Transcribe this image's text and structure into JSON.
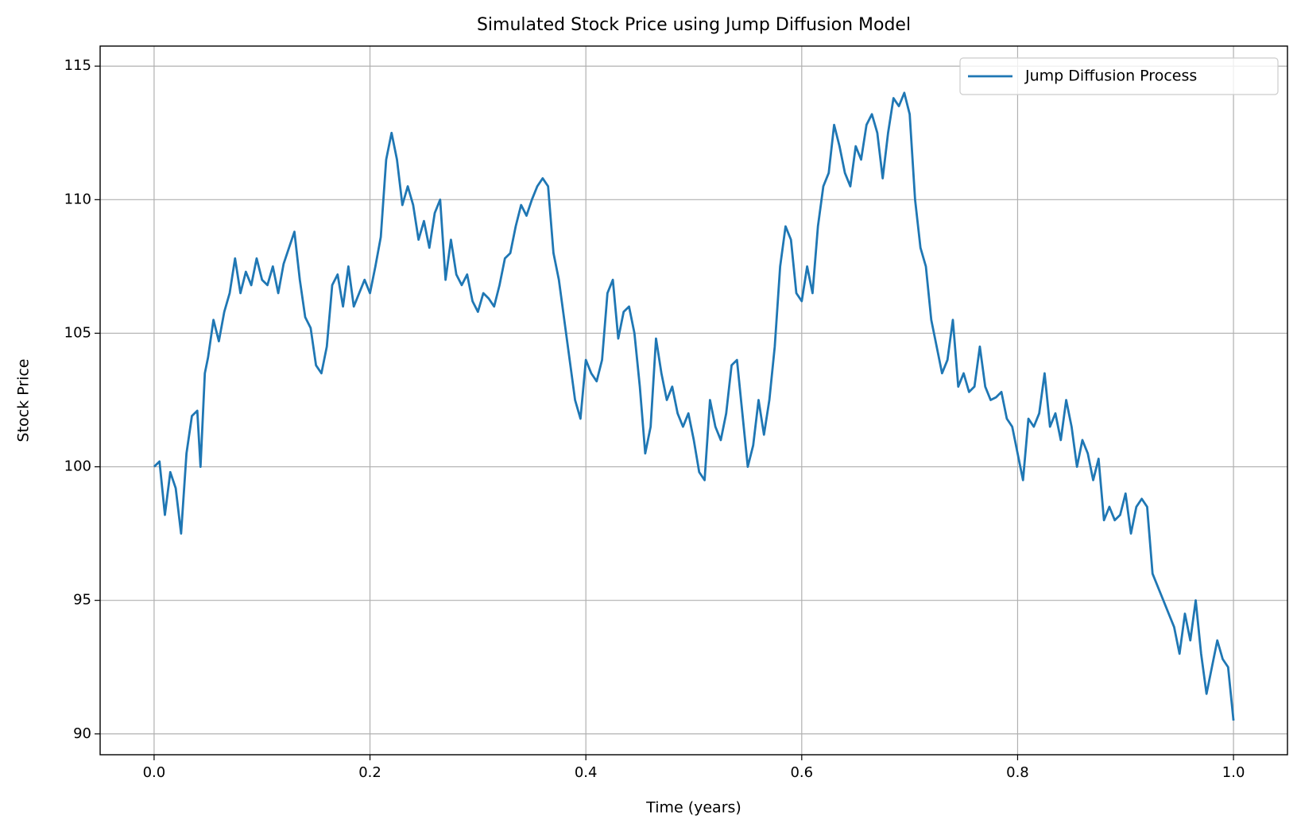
{
  "chart_data": {
    "type": "line",
    "title": "Simulated Stock Price using Jump Diffusion Model",
    "x_label": "Time (years)",
    "y_label": "Stock Price",
    "xlim": [
      -0.05,
      1.05
    ],
    "ylim": [
      89.22,
      115.75
    ],
    "xticks": [
      {
        "value": 0,
        "label": "0.0"
      },
      0.2,
      0.4,
      0.6,
      0.8,
      {
        "value": 1,
        "label": "1.0"
      }
    ],
    "yticks": [
      90,
      95,
      100,
      105,
      110,
      115
    ],
    "grid": true,
    "legend": "upper right",
    "x": [
      0,
      0.005,
      0.01,
      0.015,
      0.02,
      0.025,
      0.03,
      0.035,
      0.04,
      0.043,
      0.047,
      0.05,
      0.055,
      0.06,
      0.065,
      0.07,
      0.075,
      0.08,
      0.085,
      0.09,
      0.095,
      0.1,
      0.105,
      0.11,
      0.115,
      0.12,
      0.125,
      0.13,
      0.135,
      0.14,
      0.145,
      0.15,
      0.155,
      0.16,
      0.165,
      0.17,
      0.175,
      0.18,
      0.185,
      0.19,
      0.195,
      0.2,
      0.205,
      0.21,
      0.215,
      0.22,
      0.225,
      0.23,
      0.235,
      0.24,
      0.245,
      0.25,
      0.255,
      0.26,
      0.265,
      0.27,
      0.275,
      0.28,
      0.285,
      0.29,
      0.295,
      0.3,
      0.305,
      0.31,
      0.315,
      0.32,
      0.325,
      0.33,
      0.335,
      0.34,
      0.345,
      0.35,
      0.355,
      0.36,
      0.365,
      0.37,
      0.375,
      0.38,
      0.385,
      0.39,
      0.395,
      0.4,
      0.405,
      0.41,
      0.415,
      0.42,
      0.425,
      0.43,
      0.435,
      0.44,
      0.445,
      0.45,
      0.455,
      0.46,
      0.465,
      0.47,
      0.475,
      0.48,
      0.485,
      0.49,
      0.495,
      0.5,
      0.505,
      0.51,
      0.515,
      0.52,
      0.525,
      0.53,
      0.535,
      0.54,
      0.545,
      0.55,
      0.555,
      0.56,
      0.565,
      0.57,
      0.575,
      0.58,
      0.585,
      0.59,
      0.595,
      0.6,
      0.605,
      0.61,
      0.615,
      0.62,
      0.625,
      0.63,
      0.635,
      0.64,
      0.645,
      0.65,
      0.655,
      0.66,
      0.665,
      0.67,
      0.675,
      0.68,
      0.685,
      0.69,
      0.695,
      0.7,
      0.705,
      0.71,
      0.715,
      0.72,
      0.725,
      0.73,
      0.735,
      0.74,
      0.745,
      0.75,
      0.755,
      0.76,
      0.765,
      0.77,
      0.775,
      0.78,
      0.785,
      0.79,
      0.795,
      0.8,
      0.805,
      0.81,
      0.815,
      0.82,
      0.825,
      0.83,
      0.835,
      0.84,
      0.845,
      0.85,
      0.855,
      0.86,
      0.865,
      0.87,
      0.875,
      0.88,
      0.885,
      0.89,
      0.895,
      0.9,
      0.905,
      0.91,
      0.915,
      0.92,
      0.925,
      0.93,
      0.935,
      0.94,
      0.945,
      0.95,
      0.955,
      0.96,
      0.965,
      0.97,
      0.975,
      0.98,
      0.985,
      0.99,
      0.995,
      1
    ],
    "series": [
      {
        "name": "Jump Diffusion Process",
        "color": "#1f77b4",
        "values": [
          100,
          100.2,
          98.2,
          99.8,
          99.2,
          97.5,
          100.5,
          101.9,
          102.1,
          100,
          103.5,
          104.1,
          105.5,
          104.7,
          105.8,
          106.5,
          107.8,
          106.5,
          107.3,
          106.8,
          107.8,
          107,
          106.8,
          107.5,
          106.5,
          107.6,
          108.2,
          108.8,
          107,
          105.6,
          105.2,
          103.8,
          103.5,
          104.5,
          106.8,
          107.2,
          106,
          107.5,
          106,
          106.5,
          107,
          106.5,
          107.5,
          108.6,
          111.5,
          112.5,
          111.5,
          109.8,
          110.5,
          109.8,
          108.5,
          109.2,
          108.2,
          109.5,
          110,
          107,
          108.5,
          107.2,
          106.8,
          107.2,
          106.2,
          105.8,
          106.5,
          106.3,
          106,
          106.8,
          107.8,
          108,
          109,
          109.8,
          109.4,
          110,
          110.5,
          110.8,
          110.5,
          108,
          107,
          105.5,
          104,
          102.5,
          101.8,
          104,
          103.5,
          103.2,
          104,
          106.5,
          107,
          104.8,
          105.8,
          106,
          105,
          103,
          100.5,
          101.5,
          104.8,
          103.5,
          102.5,
          103,
          102,
          101.5,
          102,
          101,
          99.8,
          99.5,
          102.5,
          101.5,
          101,
          102,
          103.8,
          104,
          102,
          100,
          100.8,
          102.5,
          101.2,
          102.5,
          104.5,
          107.5,
          109,
          108.5,
          106.5,
          106.2,
          107.5,
          106.5,
          109,
          110.5,
          111,
          112.8,
          112,
          111,
          110.5,
          112,
          111.5,
          112.8,
          113.2,
          112.5,
          110.8,
          112.5,
          113.8,
          113.5,
          114,
          113.2,
          110,
          108.2,
          107.5,
          105.5,
          104.5,
          103.5,
          104,
          105.5,
          103,
          103.5,
          102.8,
          103,
          104.5,
          103,
          102.5,
          102.6,
          102.8,
          101.8,
          101.5,
          100.5,
          99.5,
          101.8,
          101.5,
          102,
          103.5,
          101.5,
          102,
          101,
          102.5,
          101.5,
          100,
          101,
          100.5,
          99.5,
          100.3,
          98,
          98.5,
          98,
          98.2,
          99,
          97.5,
          98.5,
          98.8,
          98.5,
          96,
          95.5,
          95,
          94.5,
          94,
          93,
          94.5,
          93.5,
          95,
          93,
          91.5,
          92.5,
          93.5,
          92.8,
          92.5,
          90.5
        ]
      }
    ]
  }
}
